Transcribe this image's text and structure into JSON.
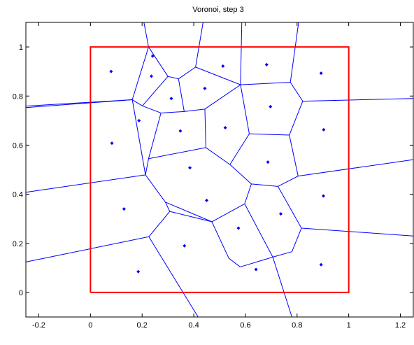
{
  "chart_data": {
    "type": "scatter",
    "title": "Voronoi, step 3",
    "xlabel": "",
    "ylabel": "",
    "xlim": [
      -0.25,
      1.25
    ],
    "ylim": [
      -0.1,
      1.1
    ],
    "xticks": [
      -0.2,
      0,
      0.2,
      0.4,
      0.6,
      0.8,
      1,
      1.2
    ],
    "xtick_labels": [
      "-0.2",
      "0",
      "0.2",
      "0.4",
      "0.6",
      "0.8",
      "1",
      "1.2"
    ],
    "yticks": [
      0,
      0.2,
      0.4,
      0.6,
      0.8,
      1
    ],
    "ytick_labels": [
      "0",
      "0.2",
      "0.4",
      "0.6",
      "0.8",
      "1"
    ],
    "grid": false,
    "legend": "none",
    "colors": {
      "points": "#0000ff",
      "edges": "#0000ff",
      "bounding_box": "#ff0000"
    },
    "bounding_box": [
      [
        0,
        0
      ],
      [
        1,
        0
      ],
      [
        1,
        1
      ],
      [
        0,
        1
      ],
      [
        0,
        0
      ]
    ],
    "points": [
      {
        "x": 0.08,
        "y": 0.9
      },
      {
        "x": 0.241,
        "y": 0.963
      },
      {
        "x": 0.513,
        "y": 0.922
      },
      {
        "x": 0.682,
        "y": 0.928
      },
      {
        "x": 0.893,
        "y": 0.893
      },
      {
        "x": 0.236,
        "y": 0.881
      },
      {
        "x": 0.443,
        "y": 0.831
      },
      {
        "x": 0.313,
        "y": 0.79
      },
      {
        "x": 0.697,
        "y": 0.757
      },
      {
        "x": 0.188,
        "y": 0.7
      },
      {
        "x": 0.348,
        "y": 0.658
      },
      {
        "x": 0.522,
        "y": 0.671
      },
      {
        "x": 0.903,
        "y": 0.663
      },
      {
        "x": 0.083,
        "y": 0.608
      },
      {
        "x": 0.385,
        "y": 0.508
      },
      {
        "x": 0.687,
        "y": 0.531
      },
      {
        "x": 0.902,
        "y": 0.393
      },
      {
        "x": 0.45,
        "y": 0.375
      },
      {
        "x": 0.13,
        "y": 0.34
      },
      {
        "x": 0.737,
        "y": 0.32
      },
      {
        "x": 0.573,
        "y": 0.262
      },
      {
        "x": 0.364,
        "y": 0.19
      },
      {
        "x": 0.893,
        "y": 0.113
      },
      {
        "x": 0.641,
        "y": 0.094
      },
      {
        "x": 0.185,
        "y": 0.085
      }
    ],
    "edges": [
      [
        [
          0.207,
          1.1
        ],
        [
          0.225,
          1.0
        ]
      ],
      [
        [
          0.225,
          1.0
        ],
        [
          0.3,
          0.88
        ]
      ],
      [
        [
          0.225,
          1.0
        ],
        [
          0.162,
          0.785
        ]
      ],
      [
        [
          0.162,
          0.785
        ],
        [
          0.201,
          0.76
        ]
      ],
      [
        [
          0.201,
          0.76
        ],
        [
          0.3,
          0.88
        ]
      ],
      [
        [
          0.3,
          0.88
        ],
        [
          0.341,
          0.87
        ]
      ],
      [
        [
          0.341,
          0.87
        ],
        [
          0.407,
          0.918
        ]
      ],
      [
        [
          0.407,
          0.918
        ],
        [
          0.436,
          1.1
        ]
      ],
      [
        [
          0.407,
          0.918
        ],
        [
          0.581,
          0.846
        ]
      ],
      [
        [
          0.581,
          0.846
        ],
        [
          0.586,
          1.1
        ]
      ],
      [
        [
          0.581,
          0.846
        ],
        [
          0.774,
          0.856
        ]
      ],
      [
        [
          0.774,
          0.856
        ],
        [
          0.806,
          1.1
        ]
      ],
      [
        [
          0.774,
          0.856
        ],
        [
          0.822,
          0.779
        ]
      ],
      [
        [
          0.822,
          0.779
        ],
        [
          1.25,
          0.79
        ]
      ],
      [
        [
          0.822,
          0.779
        ],
        [
          0.77,
          0.641
        ]
      ],
      [
        [
          0.77,
          0.641
        ],
        [
          0.615,
          0.646
        ]
      ],
      [
        [
          0.615,
          0.646
        ],
        [
          0.581,
          0.846
        ]
      ],
      [
        [
          0.615,
          0.646
        ],
        [
          0.54,
          0.521
        ]
      ],
      [
        [
          0.54,
          0.521
        ],
        [
          0.623,
          0.442
        ]
      ],
      [
        [
          0.623,
          0.442
        ],
        [
          0.726,
          0.432
        ]
      ],
      [
        [
          0.726,
          0.432
        ],
        [
          0.804,
          0.474
        ]
      ],
      [
        [
          0.804,
          0.474
        ],
        [
          0.77,
          0.641
        ]
      ],
      [
        [
          0.804,
          0.474
        ],
        [
          1.25,
          0.541
        ]
      ],
      [
        [
          0.726,
          0.432
        ],
        [
          0.817,
          0.262
        ]
      ],
      [
        [
          0.817,
          0.262
        ],
        [
          1.25,
          0.23
        ]
      ],
      [
        [
          0.817,
          0.262
        ],
        [
          0.78,
          0.166
        ]
      ],
      [
        [
          0.78,
          0.166
        ],
        [
          0.706,
          0.144
        ]
      ],
      [
        [
          0.706,
          0.144
        ],
        [
          0.597,
          0.361
        ]
      ],
      [
        [
          0.597,
          0.361
        ],
        [
          0.623,
          0.442
        ]
      ],
      [
        [
          0.597,
          0.361
        ],
        [
          0.47,
          0.288
        ]
      ],
      [
        [
          0.47,
          0.288
        ],
        [
          0.307,
          0.33
        ]
      ],
      [
        [
          0.307,
          0.33
        ],
        [
          0.29,
          0.368
        ]
      ],
      [
        [
          0.29,
          0.368
        ],
        [
          0.213,
          0.479
        ]
      ],
      [
        [
          0.213,
          0.479
        ],
        [
          0.225,
          0.545
        ]
      ],
      [
        [
          0.225,
          0.545
        ],
        [
          0.447,
          0.59
        ]
      ],
      [
        [
          0.447,
          0.59
        ],
        [
          0.54,
          0.521
        ]
      ],
      [
        [
          0.447,
          0.59
        ],
        [
          0.443,
          0.747
        ]
      ],
      [
        [
          0.443,
          0.747
        ],
        [
          0.363,
          0.737
        ]
      ],
      [
        [
          0.363,
          0.737
        ],
        [
          0.273,
          0.731
        ]
      ],
      [
        [
          0.273,
          0.731
        ],
        [
          0.225,
          0.545
        ]
      ],
      [
        [
          0.273,
          0.731
        ],
        [
          0.201,
          0.76
        ]
      ],
      [
        [
          0.363,
          0.737
        ],
        [
          0.341,
          0.87
        ]
      ],
      [
        [
          0.443,
          0.747
        ],
        [
          0.581,
          0.846
        ]
      ],
      [
        [
          0.162,
          0.785
        ],
        [
          -0.25,
          0.753
        ]
      ],
      [
        [
          0.162,
          0.785
        ],
        [
          -0.25,
          0.759
        ]
      ],
      [
        [
          0.213,
          0.479
        ],
        [
          -0.25,
          0.408
        ]
      ],
      [
        [
          0.162,
          0.785
        ],
        [
          0.213,
          0.479
        ]
      ],
      [
        [
          0.29,
          0.368
        ],
        [
          0.47,
          0.288
        ]
      ],
      [
        [
          0.307,
          0.33
        ],
        [
          0.226,
          0.227
        ]
      ],
      [
        [
          0.226,
          0.227
        ],
        [
          -0.25,
          0.124
        ]
      ],
      [
        [
          0.226,
          0.227
        ],
        [
          0.417,
          -0.1
        ]
      ],
      [
        [
          0.47,
          0.288
        ],
        [
          0.536,
          0.139
        ]
      ],
      [
        [
          0.536,
          0.139
        ],
        [
          0.58,
          0.104
        ]
      ],
      [
        [
          0.58,
          0.104
        ],
        [
          0.706,
          0.144
        ]
      ],
      [
        [
          0.706,
          0.144
        ],
        [
          0.78,
          -0.1
        ]
      ]
    ]
  }
}
